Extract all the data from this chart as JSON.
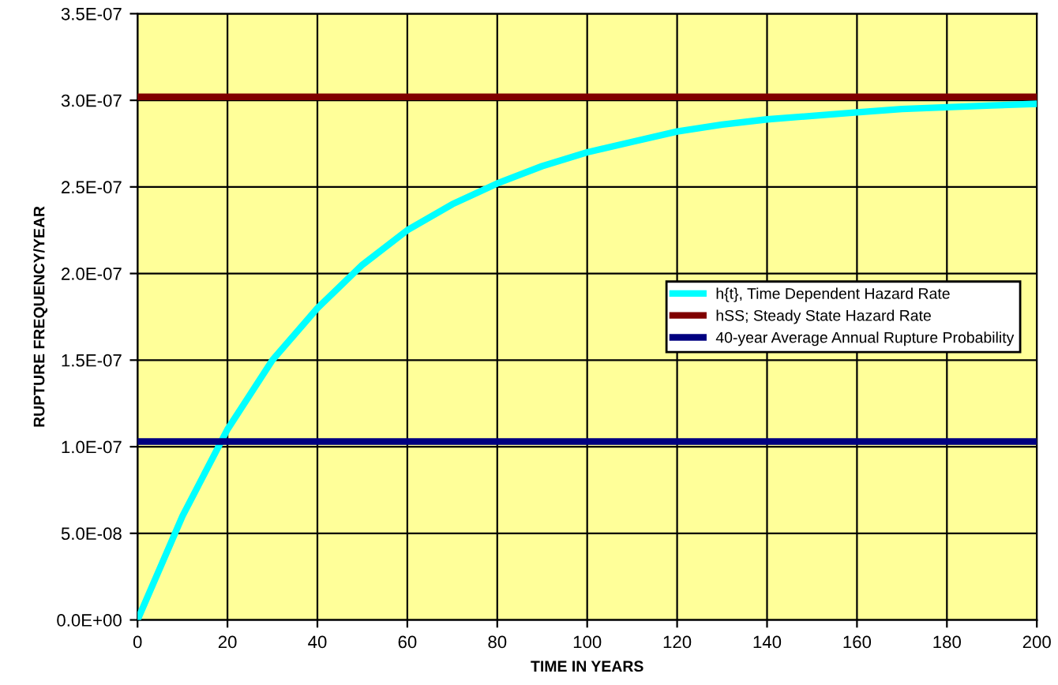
{
  "chart_data": {
    "type": "line",
    "xlabel": "TIME IN YEARS",
    "ylabel": "RUPTURE FREQUENCY/YEAR",
    "series": [
      {
        "name": "h{t}, Time Dependent Hazard Rate",
        "color": "#00ffff",
        "x": [
          0,
          10,
          20,
          30,
          40,
          50,
          60,
          70,
          80,
          90,
          100,
          110,
          120,
          130,
          140,
          150,
          160,
          170,
          180,
          190,
          200
        ],
        "values": [
          0,
          6e-08,
          1.1e-07,
          1.5e-07,
          1.8e-07,
          2.05e-07,
          2.25e-07,
          2.4e-07,
          2.52e-07,
          2.62e-07,
          2.7e-07,
          2.76e-07,
          2.82e-07,
          2.86e-07,
          2.89e-07,
          2.91e-07,
          2.93e-07,
          2.95e-07,
          2.96e-07,
          2.97e-07,
          2.98e-07
        ]
      },
      {
        "name": "hSS; Steady State Hazard Rate",
        "color": "#800000",
        "x": [
          0,
          200
        ],
        "values": [
          3.02e-07,
          3.02e-07
        ]
      },
      {
        "name": "40-year Average Annual Rupture Probability",
        "color": "#000080",
        "x": [
          0,
          200
        ],
        "values": [
          1.03e-07,
          1.03e-07
        ]
      }
    ],
    "xlim": [
      0,
      200
    ],
    "xticks": [
      0,
      20,
      40,
      60,
      80,
      100,
      120,
      140,
      160,
      180,
      200
    ],
    "ylim": [
      0,
      3.5e-07
    ],
    "yticks": [
      {
        "value": 0,
        "label": "0.0E+00"
      },
      {
        "value": 5e-08,
        "label": "5.0E-08"
      },
      {
        "value": 1e-07,
        "label": "1.0E-07"
      },
      {
        "value": 1.5e-07,
        "label": "1.5E-07"
      },
      {
        "value": 2e-07,
        "label": "2.0E-07"
      },
      {
        "value": 2.5e-07,
        "label": "2.5E-07"
      },
      {
        "value": 3e-07,
        "label": "3.0E-07"
      },
      {
        "value": 3.5e-07,
        "label": "3.5E-07"
      }
    ],
    "grid": true,
    "legend": "center right",
    "marker": "none",
    "line_style": "solid"
  }
}
